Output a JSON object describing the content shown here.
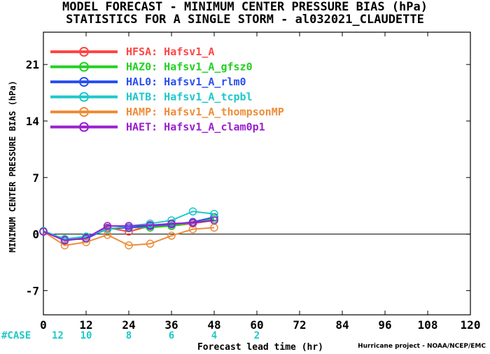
{
  "title": {
    "line1": "MODEL FORECAST - MINIMUM CENTER PRESSURE BIAS (hPa)",
    "line2": "STATISTICS FOR A SINGLE STORM - al032021_CLAUDETTE"
  },
  "credit": "Hurricane project - NOAA/NCEP/EMC",
  "case_label": "#CASE",
  "chart_data": {
    "type": "line",
    "title": "MODEL FORECAST - MINIMUM CENTER PRESSURE BIAS (hPa)",
    "subtitle": "STATISTICS FOR A SINGLE STORM - al032021_CLAUDETTE",
    "xlabel": "Forecast lead time (hr)",
    "ylabel": "MINIMUM CENTER PRESSURE BIAS (hPa)",
    "xlim": [
      0,
      120
    ],
    "ylim": [
      -10,
      25
    ],
    "x_ticks": [
      0,
      12,
      24,
      36,
      48,
      60,
      72,
      84,
      96,
      108,
      120
    ],
    "y_ticks": [
      -7,
      0,
      7,
      14,
      21
    ],
    "zero_line": true,
    "legend_position": "top-left",
    "cases": [
      {
        "x": 0,
        "n": "12"
      },
      {
        "x": 12,
        "n": "10"
      },
      {
        "x": 24,
        "n": "8"
      },
      {
        "x": 36,
        "n": "6"
      },
      {
        "x": 48,
        "n": "4"
      },
      {
        "x": 60,
        "n": "2"
      }
    ],
    "case_color": "#1ec8c8",
    "series": [
      {
        "name": "HFSA: Hafsv1_A",
        "color": "#ff4545",
        "x": [
          0,
          6,
          12,
          18,
          24,
          30,
          36,
          42,
          48
        ],
        "values": [
          0.3,
          -0.7,
          -0.6,
          0.8,
          0.3,
          1.0,
          1.0,
          1.3,
          1.7
        ]
      },
      {
        "name": "HAZ0: Hafsv1_A_gfsz0",
        "color": "#22d022",
        "x": [
          0,
          6,
          12,
          18,
          24,
          30,
          36,
          42,
          48
        ],
        "values": [
          0.3,
          -0.6,
          -0.5,
          0.6,
          0.8,
          0.8,
          1.0,
          1.4,
          1.9
        ]
      },
      {
        "name": "HAL0: Hafsv1_A_rlm0",
        "color": "#2a50f0",
        "x": [
          0,
          6,
          12,
          18,
          24,
          30,
          36,
          42,
          48
        ],
        "values": [
          0.3,
          -0.7,
          -0.6,
          0.7,
          0.8,
          1.0,
          1.2,
          1.5,
          2.1
        ]
      },
      {
        "name": "HATB: Hafsv1_A_tcpbl",
        "color": "#1ec8c8",
        "x": [
          0,
          6,
          12,
          18,
          24,
          30,
          36,
          42,
          48
        ],
        "values": [
          0.4,
          -0.6,
          -0.3,
          0.6,
          1.0,
          1.3,
          1.7,
          2.8,
          2.5
        ]
      },
      {
        "name": "HAMP: Hafsv1_A_thompsonMP",
        "color": "#ee8d3a",
        "x": [
          0,
          6,
          12,
          18,
          24,
          30,
          36,
          42,
          48
        ],
        "values": [
          0.3,
          -1.4,
          -1.0,
          -0.1,
          -1.4,
          -1.2,
          -0.2,
          0.6,
          0.8
        ]
      },
      {
        "name": "HAET: Hafsv1_A_clam0p1",
        "color": "#9a1ed0",
        "x": [
          0,
          6,
          12,
          18,
          24,
          30,
          36,
          42,
          48
        ],
        "values": [
          0.3,
          -0.8,
          -0.5,
          1.0,
          1.0,
          1.1,
          1.3,
          1.4,
          1.7
        ]
      }
    ]
  }
}
